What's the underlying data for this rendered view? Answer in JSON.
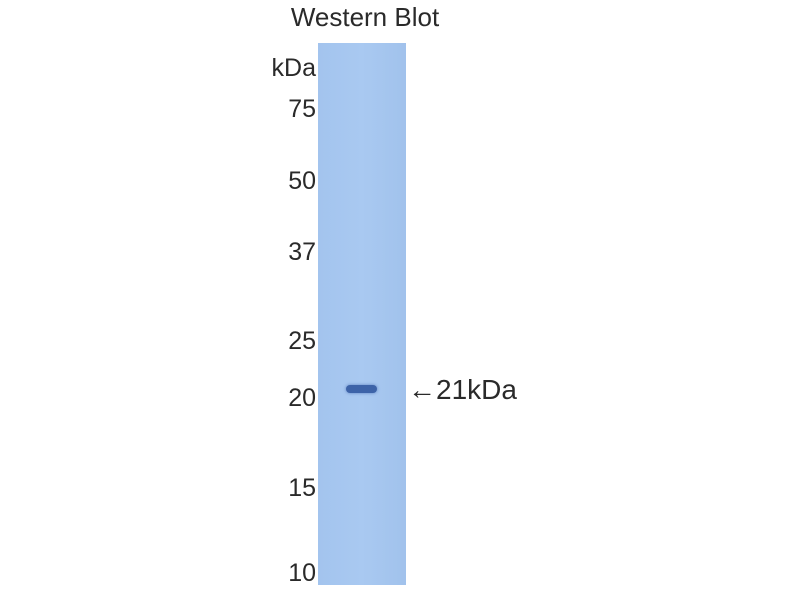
{
  "title": "Western Blot",
  "unit_label": "kDa",
  "markers": [
    "75",
    "50",
    "37",
    "25",
    "20",
    "15",
    "10"
  ],
  "band_annotation": {
    "arrow": "←",
    "label": "21kDa"
  },
  "colors": {
    "lane": "#a7c7f0",
    "band": "#3d63a8"
  }
}
